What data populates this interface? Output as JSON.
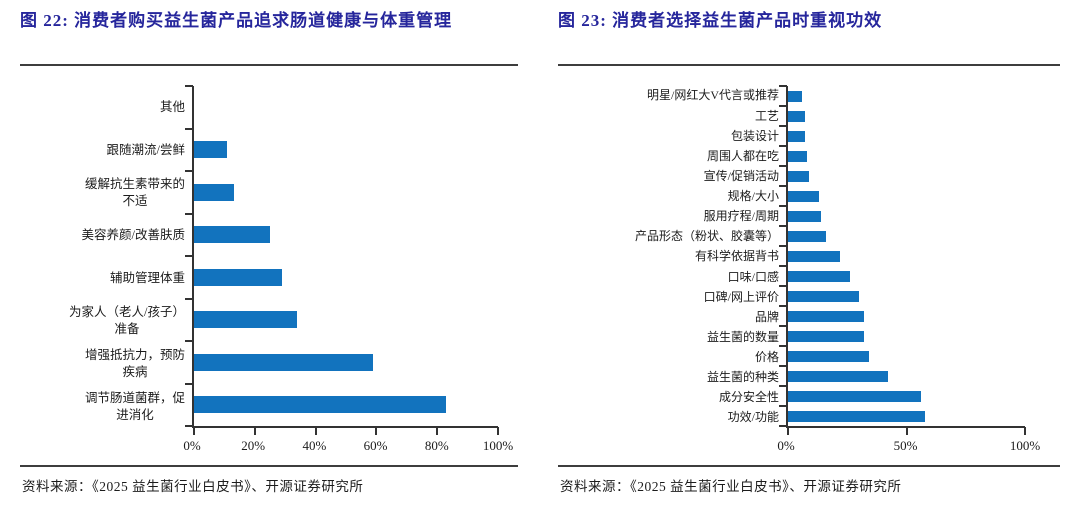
{
  "colors": {
    "bar_blue": "#1273BE",
    "title_navy": "#26269C",
    "axis_dark": "#333333",
    "rule_dark": "#3d3d3d"
  },
  "source_note": "资料来源：《2025 益生菌行业白皮书》、开源证券研究所",
  "chart_data": [
    {
      "type": "bar",
      "orientation": "horizontal",
      "figure_no": "图 22",
      "title": "图 22: 消费者购买益生菌产品追求肠道健康与体重管理",
      "categories": [
        "其他",
        "跟随潮流/尝鲜",
        "缓解抗生素带来的不适",
        "美容养颜/改善肤质",
        "辅助管理体重",
        "为家人（老人/孩子）准备",
        "增强抵抗力，预防疾病",
        "调节肠道菌群，促进消化"
      ],
      "label_lines": [
        [
          "其他"
        ],
        [
          "跟随潮流/尝鲜"
        ],
        [
          "缓解抗生素带来的",
          "不适"
        ],
        [
          "美容养颜/改善肤质"
        ],
        [
          "辅助管理体重"
        ],
        [
          "为家人（老人/孩子）",
          "准备"
        ],
        [
          "增强抵抗力，预防",
          "疾病"
        ],
        [
          "调节肠道菌群，促",
          "进消化"
        ]
      ],
      "values": [
        0,
        11,
        13,
        25,
        29,
        34,
        59,
        83
      ],
      "unit": "%",
      "xlim": [
        0,
        100
      ],
      "x_ticks": [
        "0%",
        "20%",
        "40%",
        "60%",
        "80%",
        "100%"
      ],
      "bar_color": "#1273BE",
      "grid": false,
      "legend": false,
      "category_order": "top_to_bottom"
    },
    {
      "type": "bar",
      "orientation": "horizontal",
      "figure_no": "图 23",
      "title": "图 23: 消费者选择益生菌产品时重视功效",
      "categories": [
        "明星/网红大V代言或推荐",
        "工艺",
        "包装设计",
        "周围人都在吃",
        "宣传/促销活动",
        "规格/大小",
        "服用疗程/周期",
        "产品形态（粉状、胶囊等）",
        "有科学依据背书",
        "口味/口感",
        "口碑/网上评价",
        "品牌",
        "益生菌的数量",
        "价格",
        "益生菌的种类",
        "成分安全性",
        "功效/功能"
      ],
      "label_lines": [
        [
          "明星/网红大V代言或推荐"
        ],
        [
          "工艺"
        ],
        [
          "包装设计"
        ],
        [
          "周围人都在吃"
        ],
        [
          "宣传/促销活动"
        ],
        [
          "规格/大小"
        ],
        [
          "服用疗程/周期"
        ],
        [
          "产品形态（粉状、胶囊等）"
        ],
        [
          "有科学依据背书"
        ],
        [
          "口味/口感"
        ],
        [
          "口碑/网上评价"
        ],
        [
          "品牌"
        ],
        [
          "益生菌的数量"
        ],
        [
          "价格"
        ],
        [
          "益生菌的种类"
        ],
        [
          "成分安全性"
        ],
        [
          "功效/功能"
        ]
      ],
      "values": [
        6,
        7,
        7,
        8,
        9,
        13,
        14,
        16,
        22,
        26,
        30,
        32,
        32,
        34,
        42,
        56,
        58
      ],
      "unit": "%",
      "xlim": [
        0,
        100
      ],
      "x_ticks": [
        "0%",
        "50%",
        "100%"
      ],
      "bar_color": "#1273BE",
      "grid": false,
      "legend": false,
      "category_order": "top_to_bottom"
    }
  ]
}
